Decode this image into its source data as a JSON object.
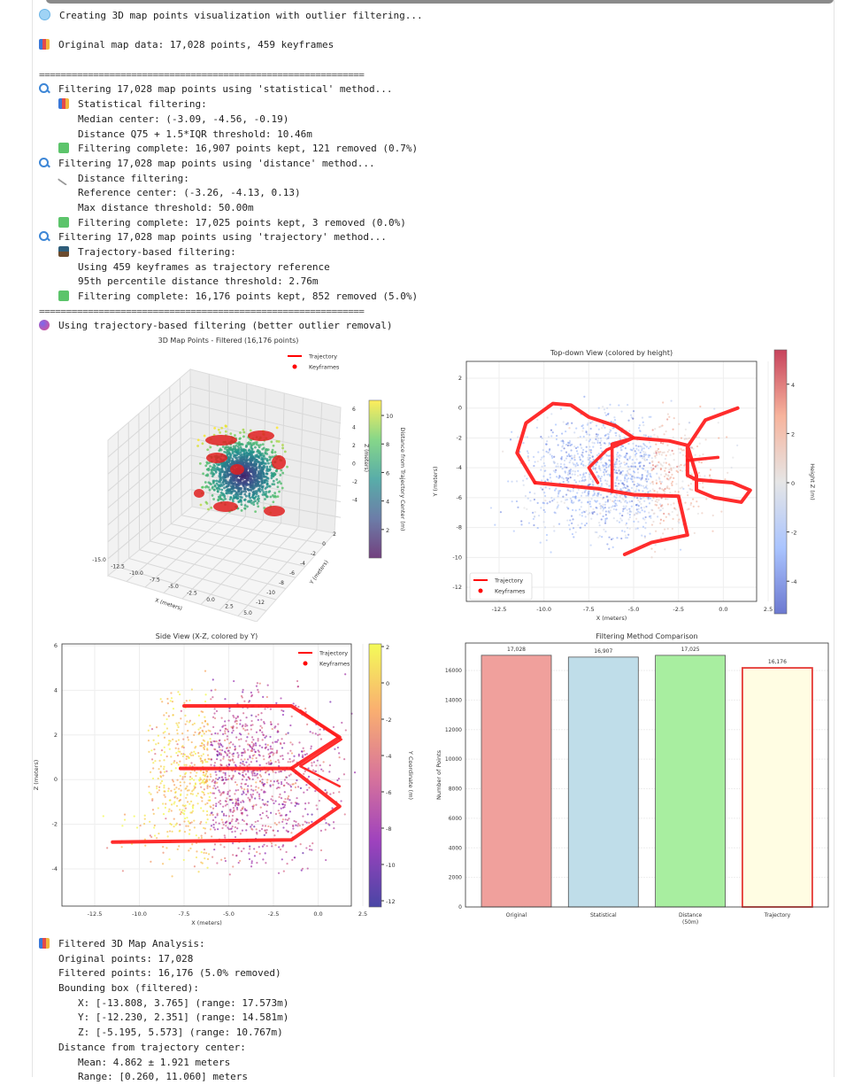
{
  "log_top": [
    {
      "icon": "circle",
      "text": "Creating 3D map points visualization with outlier filtering...",
      "indent": 0
    },
    {
      "icon": "",
      "text": "",
      "indent": 0
    },
    {
      "icon": "bar-chart",
      "text": "Original map data: 17,028 points, 459 keyframes",
      "indent": 0
    },
    {
      "icon": "",
      "text": "",
      "indent": 0
    },
    {
      "icon": "separator",
      "text": "============================================================",
      "indent": 0
    },
    {
      "icon": "magnifier",
      "text": "Filtering 17,028 map points using 'statistical' method...",
      "indent": 0
    },
    {
      "icon": "bar-chart",
      "text": "Statistical filtering:",
      "indent": 1
    },
    {
      "icon": "",
      "text": "Median center: (-3.09, -4.56, -0.19)",
      "indent": 2
    },
    {
      "icon": "",
      "text": "Distance Q75 + 1.5*IQR threshold: 10.46m",
      "indent": 2
    },
    {
      "icon": "check",
      "text": "Filtering complete: 16,907 points kept, 121 removed (0.7%)",
      "indent": 1
    },
    {
      "icon": "magnifier",
      "text": "Filtering 17,028 map points using 'distance' method...",
      "indent": 0
    },
    {
      "icon": "ruler",
      "text": "Distance filtering:",
      "indent": 1
    },
    {
      "icon": "",
      "text": "Reference center: (-3.26, -4.13, 0.13)",
      "indent": 2
    },
    {
      "icon": "",
      "text": "Max distance threshold: 50.00m",
      "indent": 2
    },
    {
      "icon": "check",
      "text": "Filtering complete: 17,025 points kept, 3 removed (0.0%)",
      "indent": 1
    },
    {
      "icon": "magnifier",
      "text": "Filtering 17,028 map points using 'trajectory' method...",
      "indent": 0
    },
    {
      "icon": "image",
      "text": "Trajectory-based filtering:",
      "indent": 1
    },
    {
      "icon": "",
      "text": "Using 459 keyframes as trajectory reference",
      "indent": 2
    },
    {
      "icon": "",
      "text": "95th percentile distance threshold: 2.76m",
      "indent": 2
    },
    {
      "icon": "check",
      "text": "Filtering complete: 16,176 points kept, 852 removed (5.0%)",
      "indent": 1
    },
    {
      "icon": "separator",
      "text": "============================================================",
      "indent": 0
    },
    {
      "icon": "ball",
      "text": "Using trajectory-based filtering (better outlier removal)",
      "indent": 0
    }
  ],
  "log_bottom": [
    {
      "icon": "bar-chart",
      "text": "Filtered 3D Map Analysis:",
      "indent": 0
    },
    {
      "icon": "",
      "text": "Original points: 17,028",
      "indent": 1
    },
    {
      "icon": "",
      "text": "Filtered points: 16,176 (5.0% removed)",
      "indent": 1
    },
    {
      "icon": "",
      "text": "Bounding box (filtered):",
      "indent": 1
    },
    {
      "icon": "",
      "text": "X: [-13.808, 3.765] (range: 17.573m)",
      "indent": 2
    },
    {
      "icon": "",
      "text": "Y: [-12.230, 2.351] (range: 14.581m)",
      "indent": 2
    },
    {
      "icon": "",
      "text": "Z: [-5.195, 5.573] (range: 10.767m)",
      "indent": 2
    },
    {
      "icon": "",
      "text": "Distance from trajectory center:",
      "indent": 1
    },
    {
      "icon": "",
      "text": "Mean: 4.862 ± 1.921 meters",
      "indent": 2
    },
    {
      "icon": "",
      "text": "Range: [0.260, 11.060] meters",
      "indent": 2
    }
  ],
  "chart_data": [
    {
      "type": "scatter",
      "title": "3D Map Points - Filtered (16,176 points)",
      "xlabel": "X (meters)",
      "ylabel": "Y (meters)",
      "zlabel": "Z (meters)",
      "xticks": [
        "-15.0",
        "-12.5",
        "-10.0",
        "-7.5",
        "-5.0",
        "-2.5",
        "0.0",
        "2.5",
        "5.0"
      ],
      "yticks": [
        "2",
        "0",
        "-2",
        "-4",
        "-6",
        "-8",
        "-10",
        "-12"
      ],
      "zticks": [
        "6",
        "4",
        "2",
        "0",
        "-2",
        "-4"
      ],
      "legend": [
        "Trajectory",
        "Keyframes"
      ],
      "legend_position": "top-right",
      "colorbar": {
        "label": "Distance from Trajectory Center (m)",
        "ticks": [
          "10",
          "8",
          "6",
          "4",
          "2"
        ],
        "colormap": "viridis",
        "range": [
          0.26,
          11.06
        ]
      },
      "trajectory_color": "#ff0000"
    },
    {
      "type": "scatter",
      "title": "Top-down View (colored by height)",
      "xlabel": "X (meters)",
      "ylabel": "Y (meters)",
      "xticks": [
        -12.5,
        -10.0,
        -7.5,
        -5.0,
        -2.5,
        0.0,
        2.5
      ],
      "yticks": [
        2,
        0,
        -2,
        -4,
        -6,
        -8,
        -10,
        -12
      ],
      "xlim": [
        -15.3,
        4.9
      ],
      "ylim": [
        -13.0,
        3.2
      ],
      "grid": true,
      "legend": [
        "Trajectory",
        "Keyframes"
      ],
      "legend_position": "bottom-left",
      "colorbar": {
        "label": "Height Z (m)",
        "ticks": [
          4,
          2,
          0,
          -2,
          -4
        ],
        "colormap": "coolwarm",
        "range": [
          -5.2,
          5.6
        ]
      },
      "trajectory_color": "#ff0000"
    },
    {
      "type": "scatter",
      "title": "Side View (X-Z, colored by Y)",
      "xlabel": "X (meters)",
      "ylabel": "Z (meters)",
      "xticks": [
        -12.5,
        -10.0,
        -7.5,
        -5.0,
        -2.5,
        0.0,
        2.5
      ],
      "yticks": [
        6,
        4,
        2,
        0,
        -2,
        -4
      ],
      "xlim": [
        -14.8,
        4.5
      ],
      "ylim": [
        -5.8,
        6.0
      ],
      "grid": true,
      "legend": [
        "Trajectory",
        "Keyframes"
      ],
      "legend_position": "top-right",
      "colorbar": {
        "label": "Y Coordinate (m)",
        "ticks": [
          2,
          0,
          -2,
          -4,
          -6,
          -8,
          -10,
          -12
        ],
        "colormap": "plasma",
        "range": [
          -12.2,
          2.4
        ]
      },
      "trajectory_color": "#ff0000"
    },
    {
      "type": "bar",
      "title": "Filtering Method Comparison",
      "categories": [
        "Original",
        "Statistical",
        "Distance\n(50m)",
        "Trajectory"
      ],
      "values": [
        17028,
        16907,
        17025,
        16176
      ],
      "data_labels": [
        "17,028",
        "16,907",
        "17,025",
        "16,176"
      ],
      "colors": [
        "#f0a09c",
        "#bfdde9",
        "#a8eea0",
        "#fffde3"
      ],
      "edge_colors": [
        "#555555",
        "#555555",
        "#555555",
        "#e53935"
      ],
      "xlabel": "",
      "ylabel": "Number of Points",
      "yticks": [
        0,
        2000,
        4000,
        6000,
        8000,
        10000,
        12000,
        14000,
        16000
      ],
      "ylim": [
        0,
        18000
      ],
      "grid": true
    }
  ]
}
